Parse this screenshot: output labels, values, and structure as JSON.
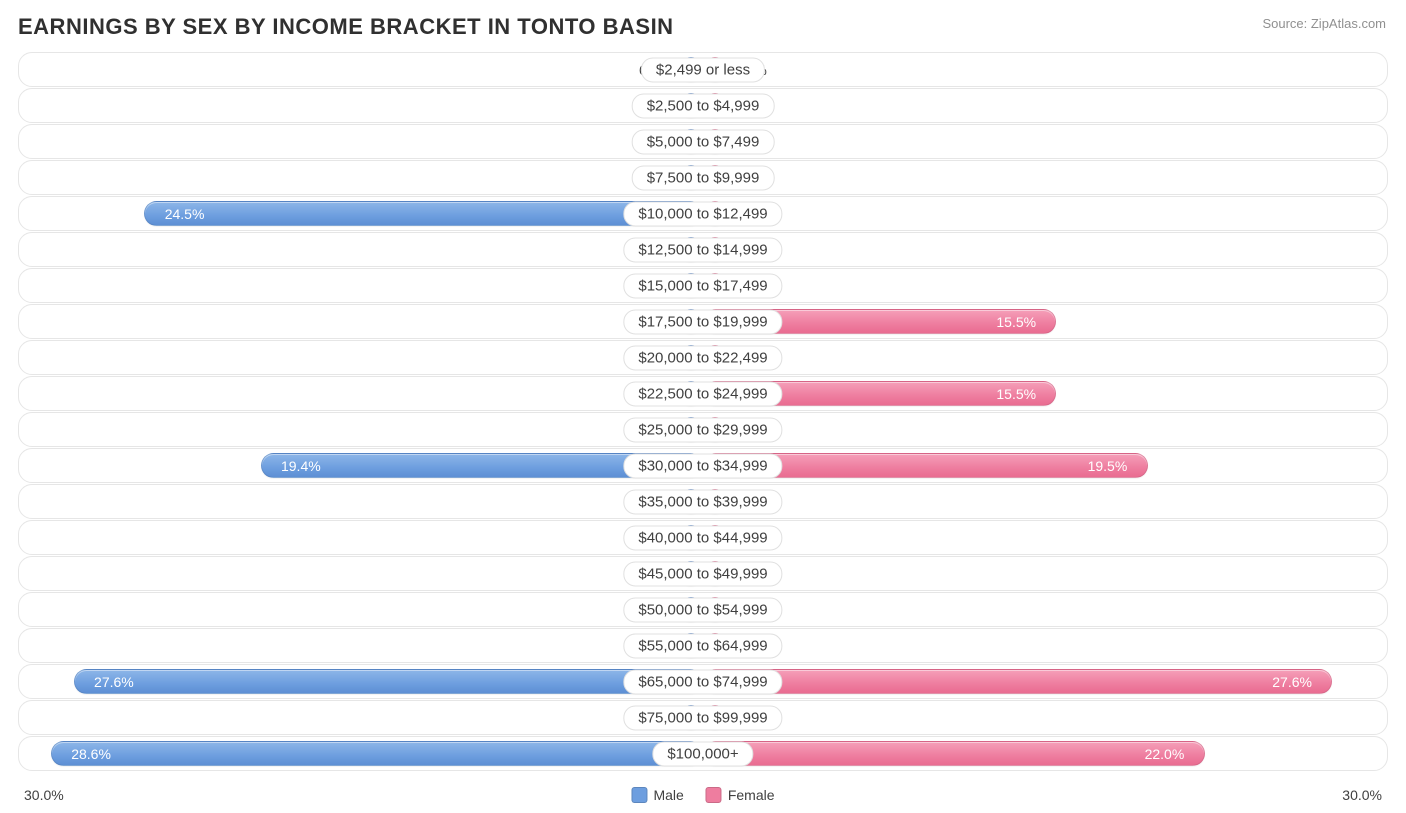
{
  "title_text": "EARNINGS BY SEX BY INCOME BRACKET IN TONTO BASIN",
  "source_text": "Source: ZipAtlas.com",
  "chart": {
    "type": "diverging-bar",
    "axis_max": 30.0,
    "axis_label_left": "30.0%",
    "axis_label_right": "30.0%",
    "min_bar_pct": 3.5,
    "colors": {
      "male_fill": "#6d9edf",
      "female_fill": "#ee7d9f",
      "row_border": "#e6e6e6",
      "text": "#404040",
      "title": "#303030",
      "source": "#909090",
      "inside_text": "#ffffff",
      "background": "#ffffff"
    },
    "legend": [
      {
        "label": "Male",
        "color": "#6d9edf"
      },
      {
        "label": "Female",
        "color": "#ee7d9f"
      }
    ],
    "rows": [
      {
        "label": "$2,499 or less",
        "male": 0.0,
        "female": 0.0
      },
      {
        "label": "$2,500 to $4,999",
        "male": 0.0,
        "female": 0.0
      },
      {
        "label": "$5,000 to $7,499",
        "male": 0.0,
        "female": 0.0
      },
      {
        "label": "$7,500 to $9,999",
        "male": 0.0,
        "female": 0.0
      },
      {
        "label": "$10,000 to $12,499",
        "male": 24.5,
        "female": 0.0
      },
      {
        "label": "$12,500 to $14,999",
        "male": 0.0,
        "female": 0.0
      },
      {
        "label": "$15,000 to $17,499",
        "male": 0.0,
        "female": 0.0
      },
      {
        "label": "$17,500 to $19,999",
        "male": 0.0,
        "female": 15.5
      },
      {
        "label": "$20,000 to $22,499",
        "male": 0.0,
        "female": 0.0
      },
      {
        "label": "$22,500 to $24,999",
        "male": 0.0,
        "female": 15.5
      },
      {
        "label": "$25,000 to $29,999",
        "male": 0.0,
        "female": 0.0
      },
      {
        "label": "$30,000 to $34,999",
        "male": 19.4,
        "female": 19.5
      },
      {
        "label": "$35,000 to $39,999",
        "male": 0.0,
        "female": 0.0
      },
      {
        "label": "$40,000 to $44,999",
        "male": 0.0,
        "female": 0.0
      },
      {
        "label": "$45,000 to $49,999",
        "male": 0.0,
        "female": 0.0
      },
      {
        "label": "$50,000 to $54,999",
        "male": 0.0,
        "female": 0.0
      },
      {
        "label": "$55,000 to $64,999",
        "male": 0.0,
        "female": 0.0
      },
      {
        "label": "$65,000 to $74,999",
        "male": 27.6,
        "female": 27.6
      },
      {
        "label": "$75,000 to $99,999",
        "male": 0.0,
        "female": 0.0
      },
      {
        "label": "$100,000+",
        "male": 28.6,
        "female": 22.0
      }
    ]
  }
}
